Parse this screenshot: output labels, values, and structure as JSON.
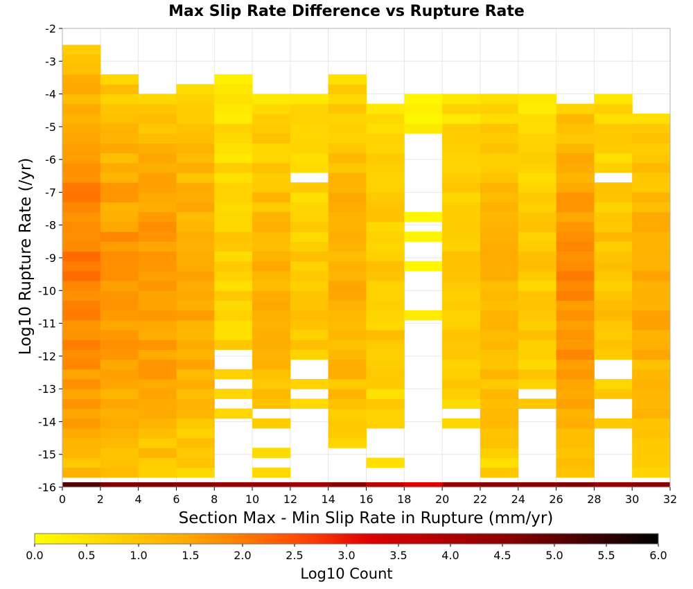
{
  "chart_data": {
    "type": "heatmap",
    "title": "Max Slip Rate Difference vs Rupture Rate",
    "xlabel": "Section Max - Min Slip Rate in Rupture (mm/yr)",
    "ylabel": "Log10 Rupture Rate (/yr)",
    "xlim": [
      0,
      32
    ],
    "ylim": [
      -16,
      -2
    ],
    "x_ticks": [
      "0",
      "2",
      "4",
      "6",
      "8",
      "10",
      "12",
      "14",
      "16",
      "18",
      "20",
      "22",
      "24",
      "26",
      "28",
      "30",
      "32"
    ],
    "y_ticks": [
      "-2",
      "-3",
      "-4",
      "-5",
      "-6",
      "-7",
      "-8",
      "-9",
      "-10",
      "-11",
      "-12",
      "-13",
      "-14",
      "-15",
      "-16"
    ],
    "x_bin_width": 2,
    "y_bin_height": 0.3,
    "grid": true,
    "colorbar": {
      "label": "Log10 Count",
      "range": [
        0,
        6
      ],
      "ticks": [
        "0.0",
        "0.5",
        "1.0",
        "1.5",
        "2.0",
        "2.5",
        "3.0",
        "3.5",
        "4.0",
        "4.5",
        "5.0",
        "5.5",
        "6.0"
      ],
      "colors": [
        "#ffff00",
        "#ffa500",
        "#ff4500",
        "#dd0000",
        "#880000",
        "#000000"
      ]
    },
    "columns": [
      {
        "x": 0,
        "y_top": -2.7,
        "value": 1.8
      },
      {
        "x": 2,
        "y_top": -3.6,
        "value": 1.5
      },
      {
        "x": 4,
        "y_top": -4.1,
        "value": 1.5
      },
      {
        "x": 6,
        "y_top": -3.9,
        "value": 1.3
      },
      {
        "x": 8,
        "y_top": -3.6,
        "value": 0.7
      },
      {
        "x": 10,
        "y_top": -4.1,
        "value": 1.1
      },
      {
        "x": 12,
        "y_top": -4.1,
        "value": 0.8
      },
      {
        "x": 14,
        "y_top": -3.6,
        "value": 1.2
      },
      {
        "x": 16,
        "y_top": -4.4,
        "value": 0.8
      },
      {
        "x": 18,
        "y_top": -4.1,
        "value": 0.3
      },
      {
        "x": 20,
        "y_top": -4.1,
        "value": 0.9
      },
      {
        "x": 22,
        "y_top": -4.1,
        "value": 1.2
      },
      {
        "x": 24,
        "y_top": -4.1,
        "value": 0.8
      },
      {
        "x": 26,
        "y_top": -4.4,
        "value": 1.6
      },
      {
        "x": 28,
        "y_top": -4.1,
        "value": 0.9
      },
      {
        "x": 30,
        "y_top": -4.7,
        "value": 1.2
      }
    ],
    "bottom_row": {
      "y": -16,
      "values": [
        5.2,
        4.7,
        4.7,
        4.6,
        4.4,
        4.4,
        4.2,
        4.6,
        3.8,
        3.2,
        4.4,
        4.6,
        4.6,
        4.7,
        4.4,
        4.6
      ]
    },
    "empty_bins": [
      {
        "x": 8,
        "y": -12.1
      },
      {
        "x": 8,
        "y": -12.4
      },
      {
        "x": 8,
        "y": -13.0
      },
      {
        "x": 8,
        "y": -13.6
      },
      {
        "x": 8,
        "y": -14.2
      },
      {
        "x": 8,
        "y": -14.5
      },
      {
        "x": 8,
        "y": -14.8
      },
      {
        "x": 8,
        "y": -15.1
      },
      {
        "x": 8,
        "y": -15.4
      },
      {
        "x": 8,
        "y": -15.7
      },
      {
        "x": 10,
        "y": -13.9
      },
      {
        "x": 10,
        "y": -14.5
      },
      {
        "x": 10,
        "y": -14.8
      },
      {
        "x": 10,
        "y": -15.4
      },
      {
        "x": 12,
        "y": -6.7
      },
      {
        "x": 12,
        "y": -12.4
      },
      {
        "x": 12,
        "y": -12.7
      },
      {
        "x": 12,
        "y": -13.3
      },
      {
        "x": 12,
        "y": -13.9
      },
      {
        "x": 12,
        "y": -14.2
      },
      {
        "x": 12,
        "y": -14.5
      },
      {
        "x": 12,
        "y": -14.8
      },
      {
        "x": 12,
        "y": -15.1
      },
      {
        "x": 12,
        "y": -15.4
      },
      {
        "x": 12,
        "y": -15.7
      },
      {
        "x": 14,
        "y": -15.1
      },
      {
        "x": 14,
        "y": -15.4
      },
      {
        "x": 14,
        "y": -15.7
      },
      {
        "x": 16,
        "y": -14.5
      },
      {
        "x": 16,
        "y": -14.8
      },
      {
        "x": 16,
        "y": -15.1
      },
      {
        "x": 16,
        "y": -15.7
      },
      {
        "x": 18,
        "y": -5.5
      },
      {
        "x": 18,
        "y": -5.8
      },
      {
        "x": 18,
        "y": -6.1
      },
      {
        "x": 18,
        "y": -6.4
      },
      {
        "x": 18,
        "y": -6.7
      },
      {
        "x": 18,
        "y": -7.0
      },
      {
        "x": 18,
        "y": -7.3
      },
      {
        "x": 18,
        "y": -7.6
      },
      {
        "x": 18,
        "y": -8.2
      },
      {
        "x": 18,
        "y": -8.8
      },
      {
        "x": 18,
        "y": -9.1
      },
      {
        "x": 18,
        "y": -9.7
      },
      {
        "x": 18,
        "y": -10.0
      },
      {
        "x": 18,
        "y": -10.3
      },
      {
        "x": 18,
        "y": -10.6
      },
      {
        "x": 18,
        "y": -11.2
      },
      {
        "x": 18,
        "y": -11.5
      },
      {
        "x": 18,
        "y": -11.8
      },
      {
        "x": 18,
        "y": -12.1
      },
      {
        "x": 18,
        "y": -12.4
      },
      {
        "x": 18,
        "y": -12.7
      },
      {
        "x": 18,
        "y": -13.0
      },
      {
        "x": 18,
        "y": -13.3
      },
      {
        "x": 18,
        "y": -13.6
      },
      {
        "x": 18,
        "y": -13.9
      },
      {
        "x": 18,
        "y": -14.2
      },
      {
        "x": 18,
        "y": -14.5
      },
      {
        "x": 18,
        "y": -14.8
      },
      {
        "x": 18,
        "y": -15.1
      },
      {
        "x": 18,
        "y": -15.4
      },
      {
        "x": 18,
        "y": -15.7
      },
      {
        "x": 20,
        "y": -13.9
      },
      {
        "x": 20,
        "y": -14.5
      },
      {
        "x": 20,
        "y": -14.8
      },
      {
        "x": 20,
        "y": -15.1
      },
      {
        "x": 20,
        "y": -15.4
      },
      {
        "x": 20,
        "y": -15.7
      },
      {
        "x": 24,
        "y": -13.3
      },
      {
        "x": 24,
        "y": -13.9
      },
      {
        "x": 24,
        "y": -14.2
      },
      {
        "x": 24,
        "y": -14.5
      },
      {
        "x": 24,
        "y": -14.8
      },
      {
        "x": 24,
        "y": -15.1
      },
      {
        "x": 24,
        "y": -15.4
      },
      {
        "x": 24,
        "y": -15.7
      },
      {
        "x": 28,
        "y": -6.7
      },
      {
        "x": 28,
        "y": -12.4
      },
      {
        "x": 28,
        "y": -12.7
      },
      {
        "x": 28,
        "y": -13.6
      },
      {
        "x": 28,
        "y": -13.9
      },
      {
        "x": 28,
        "y": -14.5
      },
      {
        "x": 28,
        "y": -14.8
      },
      {
        "x": 28,
        "y": -15.1
      },
      {
        "x": 28,
        "y": -15.4
      },
      {
        "x": 28,
        "y": -15.7
      }
    ]
  }
}
